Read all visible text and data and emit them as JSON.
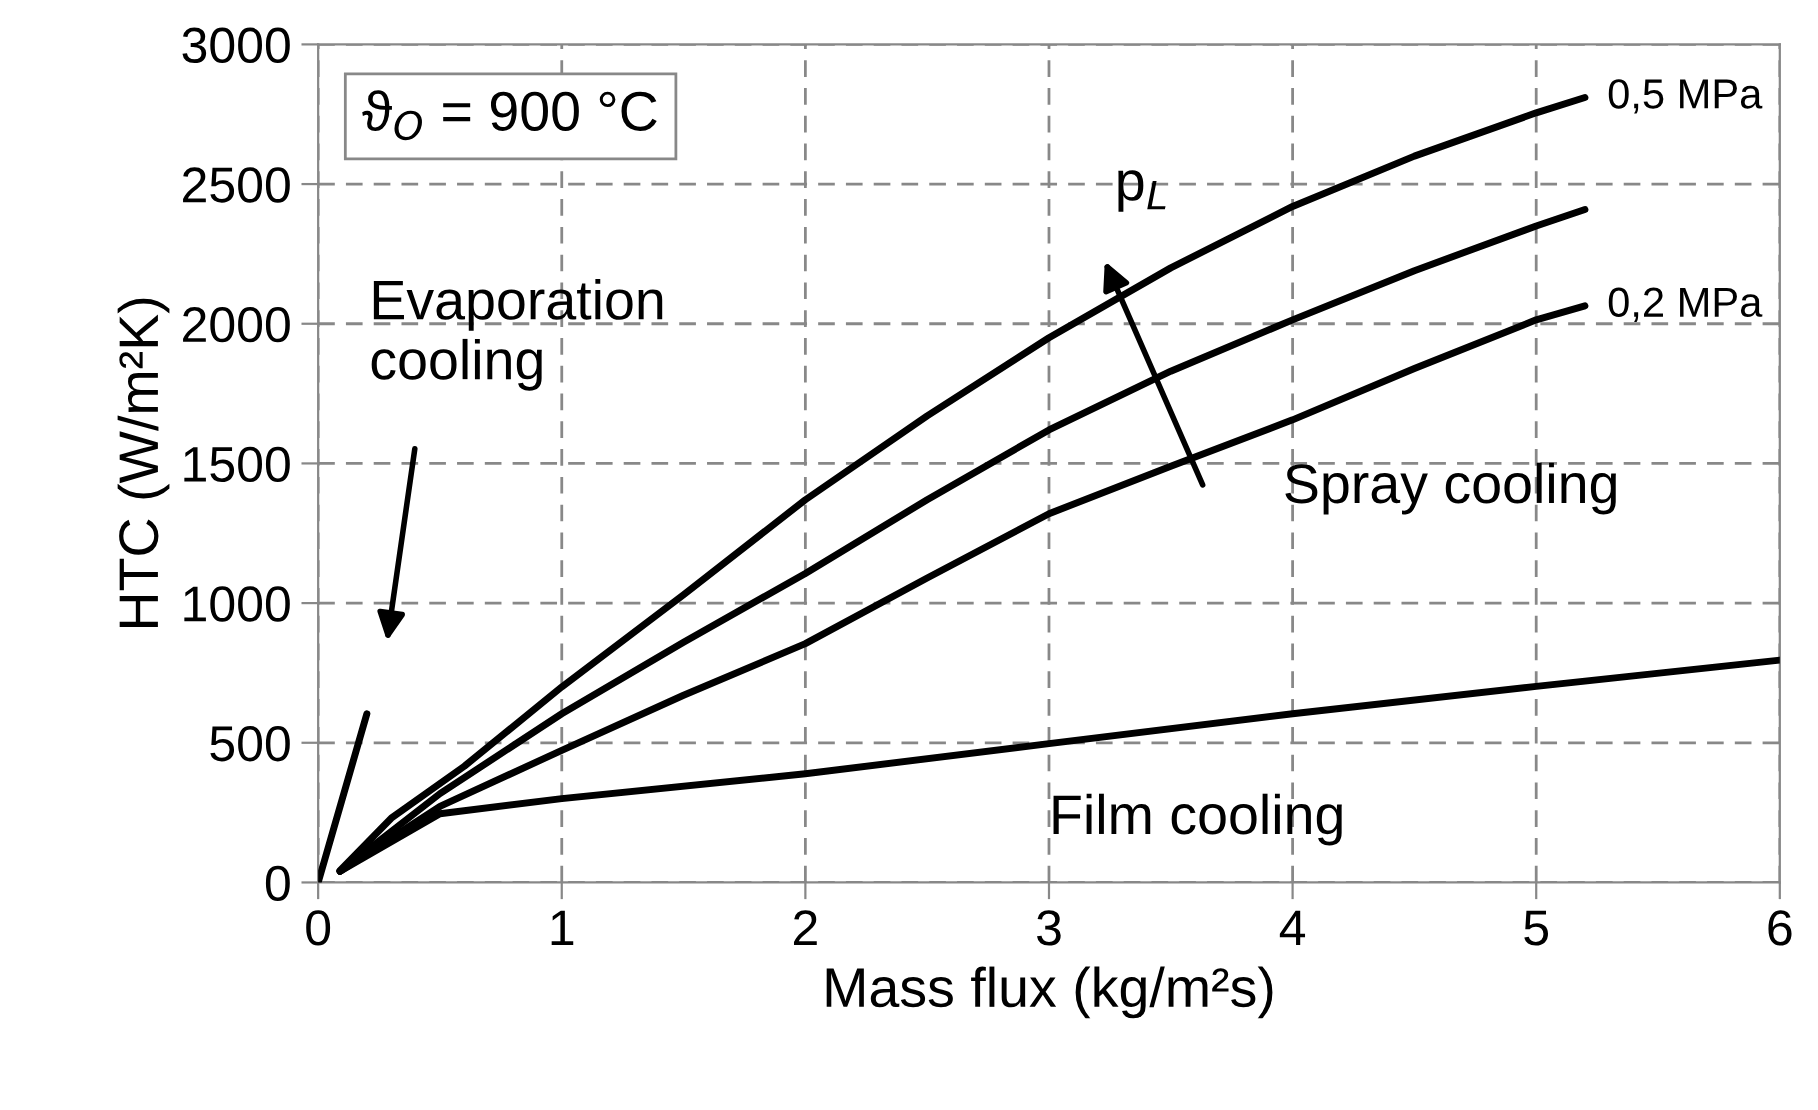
{
  "chart_data": {
    "type": "line",
    "xlabel": "Mass flux (kg/m²s)",
    "ylabel": "HTC (W/m²K)",
    "xlim": [
      0,
      6
    ],
    "ylim": [
      0,
      3000
    ],
    "xticks": [
      0,
      1,
      2,
      3,
      4,
      5,
      6
    ],
    "yticks": [
      0,
      500,
      1000,
      1500,
      2000,
      2500,
      3000
    ],
    "grid": true,
    "line_style": "solid",
    "marker": "none",
    "series": [
      {
        "name": "0,5 MPa",
        "color": "#000000",
        "x": [
          0.09,
          0.3,
          0.6,
          1.0,
          1.5,
          2.0,
          2.5,
          3.0,
          3.5,
          4.0,
          4.5,
          5.0,
          5.2
        ],
        "values": [
          43,
          230,
          416,
          700,
          1030,
          1370,
          1670,
          1950,
          2200,
          2420,
          2600,
          2755,
          2810
        ]
      },
      {
        "color": "#000000",
        "x": [
          0.09,
          0.5,
          1.0,
          1.5,
          2.0,
          2.5,
          3.0,
          3.5,
          4.0,
          4.5,
          5.0,
          5.2
        ],
        "values": [
          40,
          318,
          604,
          860,
          1106,
          1370,
          1620,
          1830,
          2014,
          2190,
          2350,
          2409
        ]
      },
      {
        "name": "0,2 MPa",
        "color": "#000000",
        "x": [
          0.09,
          0.5,
          1.0,
          1.5,
          2.0,
          2.5,
          3.0,
          3.5,
          4.0,
          4.5,
          5.0,
          5.2
        ],
        "values": [
          40,
          272,
          473,
          670,
          855,
          1090,
          1320,
          1490,
          1656,
          1840,
          2014,
          2064
        ]
      },
      {
        "color": "#000000",
        "x": [
          0.09,
          0.5,
          1.0,
          2.0,
          3.0,
          4.0,
          5.0,
          6.0
        ],
        "values": [
          40,
          246,
          300,
          389,
          497,
          604,
          702,
          796
        ]
      },
      {
        "color": "#000000",
        "x": [
          0,
          0.2
        ],
        "values": [
          0,
          604
        ]
      }
    ],
    "annotations": [
      "ϑ$_{O}$ = 900 °C",
      "Evaporation\ncooling",
      "Spray cooling",
      "Film cooling",
      "p$_{L}$"
    ]
  }
}
